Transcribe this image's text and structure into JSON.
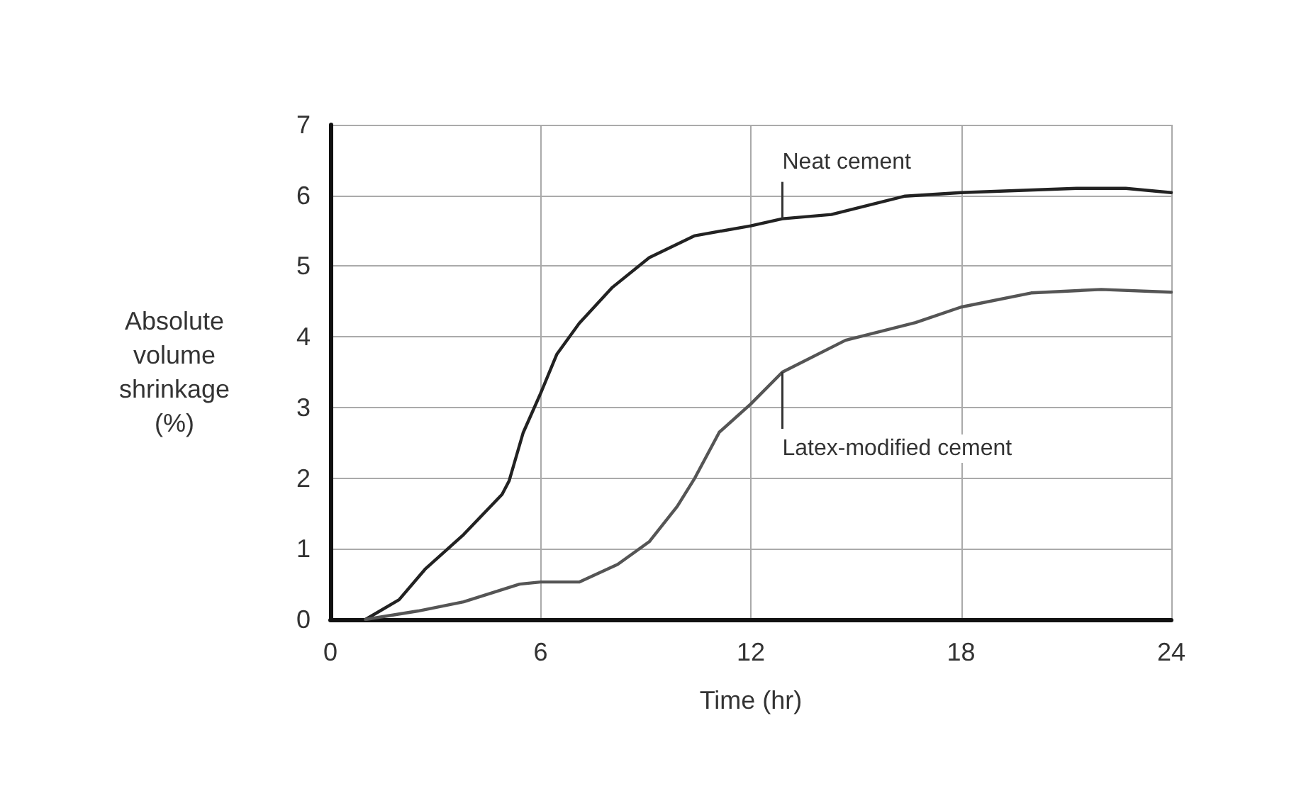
{
  "chart_data": {
    "type": "line",
    "xlabel": "Time (hr)",
    "ylabel": "Absolute\nvolume\nshrinkage\n(%)",
    "xlim": [
      0,
      24
    ],
    "xticks": [
      0,
      6,
      12,
      18,
      24
    ],
    "ylim": [
      0,
      7
    ],
    "yticks": [
      0,
      1,
      2,
      3,
      4,
      5,
      6,
      7
    ],
    "grid": true,
    "legend": false,
    "marker": "none",
    "line_style": "solid",
    "series": [
      {
        "name": "Neat cement",
        "color": "#222222",
        "x": [
          1.0,
          1.96,
          2.7,
          3.8,
          4.9,
          5.1,
          5.5,
          6,
          6.46,
          7.1,
          8.05,
          9.1,
          10.4,
          12,
          12.9,
          14.3,
          16.4,
          18,
          21.3,
          22.7,
          24
        ],
        "values": [
          0,
          0.28,
          0.71,
          1.2,
          1.77,
          1.96,
          2.64,
          3.2,
          3.75,
          4.19,
          4.7,
          5.12,
          5.43,
          5.57,
          5.67,
          5.73,
          5.99,
          6.04,
          6.1,
          6.1,
          6.04
        ]
      },
      {
        "name": "Latex-modified cement",
        "color": "#555555",
        "x": [
          1.0,
          2.5,
          3.8,
          5.4,
          6,
          7.1,
          8.2,
          9.1,
          9.9,
          10.4,
          11.1,
          12,
          12.9,
          14.7,
          16.7,
          18,
          20,
          22,
          24
        ],
        "values": [
          0,
          0.12,
          0.25,
          0.5,
          0.53,
          0.53,
          0.78,
          1.1,
          1.6,
          2.0,
          2.65,
          3.05,
          3.5,
          3.95,
          4.2,
          4.42,
          4.62,
          4.67,
          4.63
        ]
      }
    ]
  }
}
